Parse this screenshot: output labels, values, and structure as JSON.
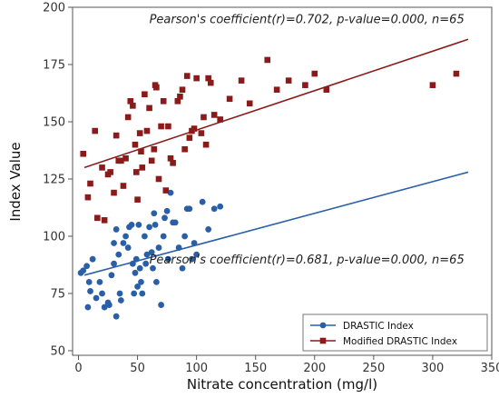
{
  "chart_data": {
    "type": "scatter",
    "xlabel": "Nitrate concentration (mg/l)",
    "ylabel": "Index Value",
    "xlim": [
      -5,
      350
    ],
    "ylim": [
      48,
      200
    ],
    "xticks": [
      0,
      50,
      100,
      150,
      200,
      250,
      300,
      350
    ],
    "yticks": [
      50,
      75,
      100,
      125,
      150,
      175,
      200
    ],
    "grid": false,
    "legend_position": "bottom-right",
    "annotations": [
      {
        "text": "Pearson's coefficient(r)=0.702, p-value=0.000, n=65",
        "x": 60,
        "y": 195
      },
      {
        "text": "Pearson's coefficient(r)=0.681, p-value=0.000, n=65",
        "x": 60,
        "y": 90
      }
    ],
    "series": [
      {
        "name": "DRASTIC Index",
        "color": "#2a5fa8",
        "marker": "circle",
        "trend": {
          "x": [
            5,
            330
          ],
          "y": [
            83,
            128
          ]
        },
        "points": [
          [
            2,
            84
          ],
          [
            4,
            85
          ],
          [
            7,
            87
          ],
          [
            8,
            69
          ],
          [
            9,
            80
          ],
          [
            10,
            76
          ],
          [
            12,
            90
          ],
          [
            15,
            73
          ],
          [
            18,
            80
          ],
          [
            20,
            75
          ],
          [
            22,
            69
          ],
          [
            25,
            71
          ],
          [
            26,
            70
          ],
          [
            28,
            83
          ],
          [
            30,
            97
          ],
          [
            30,
            88
          ],
          [
            32,
            103
          ],
          [
            32,
            65
          ],
          [
            34,
            92
          ],
          [
            35,
            75
          ],
          [
            36,
            72
          ],
          [
            38,
            97
          ],
          [
            40,
            100
          ],
          [
            42,
            95
          ],
          [
            43,
            104
          ],
          [
            45,
            105
          ],
          [
            46,
            88
          ],
          [
            47,
            75
          ],
          [
            48,
            84
          ],
          [
            49,
            90
          ],
          [
            50,
            78
          ],
          [
            51,
            105
          ],
          [
            52,
            86
          ],
          [
            53,
            80
          ],
          [
            54,
            75
          ],
          [
            56,
            100
          ],
          [
            57,
            88
          ],
          [
            58,
            92
          ],
          [
            60,
            104
          ],
          [
            62,
            93
          ],
          [
            63,
            86
          ],
          [
            64,
            110
          ],
          [
            65,
            105
          ],
          [
            66,
            80
          ],
          [
            68,
            95
          ],
          [
            70,
            70
          ],
          [
            72,
            100
          ],
          [
            73,
            108
          ],
          [
            75,
            111
          ],
          [
            76,
            90
          ],
          [
            78,
            119
          ],
          [
            80,
            106
          ],
          [
            82,
            106
          ],
          [
            85,
            95
          ],
          [
            88,
            86
          ],
          [
            90,
            100
          ],
          [
            92,
            112
          ],
          [
            94,
            112
          ],
          [
            96,
            90
          ],
          [
            98,
            97
          ],
          [
            100,
            92
          ],
          [
            105,
            115
          ],
          [
            110,
            103
          ],
          [
            115,
            112
          ],
          [
            120,
            113
          ]
        ]
      },
      {
        "name": "Modified DRASTIC Index",
        "color": "#8b1a1a",
        "marker": "square",
        "trend": {
          "x": [
            5,
            330
          ],
          "y": [
            130,
            186
          ]
        },
        "points": [
          [
            4,
            136
          ],
          [
            8,
            117
          ],
          [
            10,
            123
          ],
          [
            14,
            146
          ],
          [
            16,
            108
          ],
          [
            20,
            130
          ],
          [
            22,
            107
          ],
          [
            25,
            127
          ],
          [
            27,
            128
          ],
          [
            30,
            119
          ],
          [
            32,
            144
          ],
          [
            34,
            133
          ],
          [
            36,
            133
          ],
          [
            38,
            122
          ],
          [
            40,
            134
          ],
          [
            42,
            152
          ],
          [
            44,
            159
          ],
          [
            46,
            157
          ],
          [
            48,
            140
          ],
          [
            49,
            128
          ],
          [
            50,
            116
          ],
          [
            52,
            145
          ],
          [
            53,
            137
          ],
          [
            54,
            130
          ],
          [
            56,
            162
          ],
          [
            58,
            146
          ],
          [
            60,
            156
          ],
          [
            62,
            133
          ],
          [
            64,
            138
          ],
          [
            65,
            166
          ],
          [
            66,
            165
          ],
          [
            68,
            125
          ],
          [
            70,
            148
          ],
          [
            72,
            159
          ],
          [
            74,
            120
          ],
          [
            76,
            148
          ],
          [
            78,
            134
          ],
          [
            80,
            132
          ],
          [
            84,
            159
          ],
          [
            86,
            161
          ],
          [
            88,
            164
          ],
          [
            90,
            138
          ],
          [
            92,
            170
          ],
          [
            94,
            143
          ],
          [
            96,
            146
          ],
          [
            98,
            147
          ],
          [
            100,
            169
          ],
          [
            104,
            145
          ],
          [
            106,
            152
          ],
          [
            108,
            140
          ],
          [
            110,
            169
          ],
          [
            112,
            167
          ],
          [
            115,
            153
          ],
          [
            120,
            151
          ],
          [
            128,
            160
          ],
          [
            138,
            168
          ],
          [
            145,
            158
          ],
          [
            160,
            177
          ],
          [
            168,
            164
          ],
          [
            178,
            168
          ],
          [
            192,
            166
          ],
          [
            200,
            171
          ],
          [
            210,
            164
          ],
          [
            300,
            166
          ],
          [
            320,
            171
          ]
        ]
      }
    ]
  }
}
